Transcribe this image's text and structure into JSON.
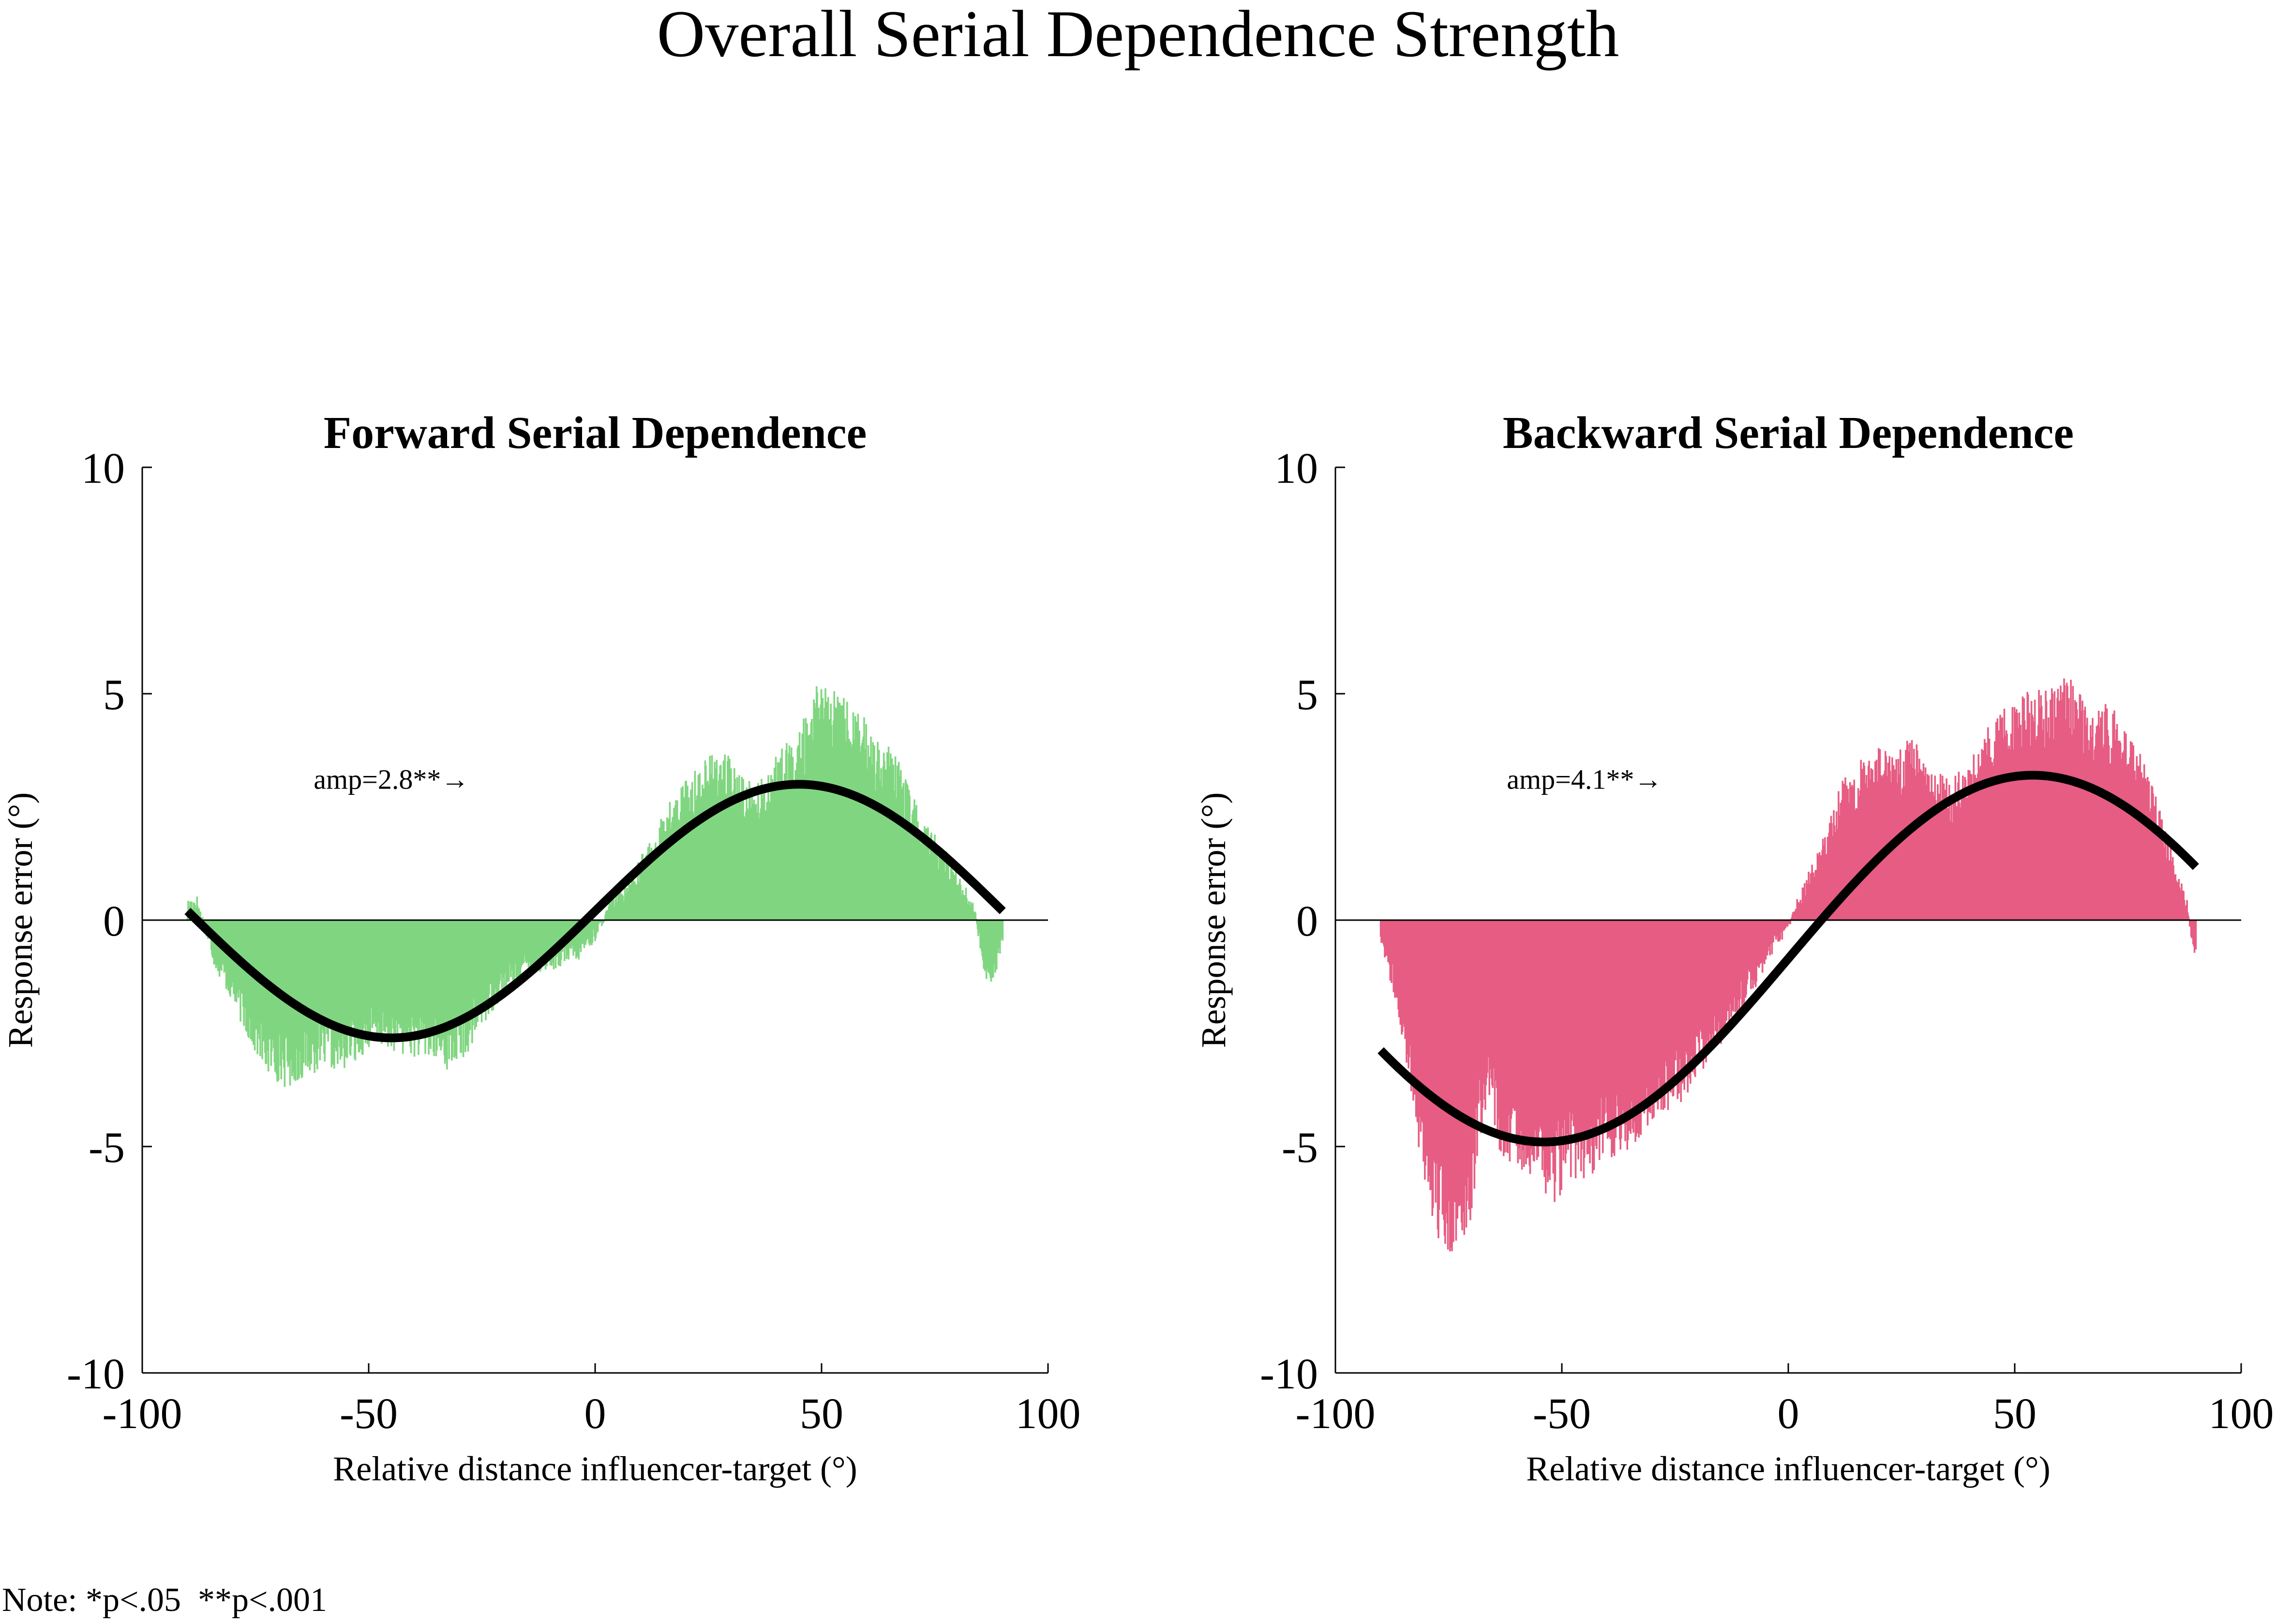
{
  "figure": {
    "title": "Overall Serial Dependence Strength",
    "note": "Note: *p<.05  **p<.001"
  },
  "chart_data": [
    {
      "type": "bar",
      "title": "Forward Serial Dependence",
      "xlabel": "Relative distance influencer-target (°)",
      "ylabel": "Response error (°)",
      "xlim": [
        -100,
        100
      ],
      "ylim": [
        -10,
        10
      ],
      "xticks": [
        "-100",
        "-50",
        "0",
        "50",
        "100"
      ],
      "yticks": [
        "-10",
        "-5",
        "0",
        "5",
        "10"
      ],
      "grid": false,
      "bar_color": "#80d680",
      "fit_color": "#000000",
      "annotation": "amp=2.8**→",
      "annotation_position_data": [
        -45,
        2.9
      ],
      "data_envelope": {
        "x": [
          -90,
          -88,
          -86,
          -84,
          -80,
          -76,
          -72,
          -68,
          -64,
          -60,
          -56,
          -52,
          -48,
          -44,
          -40,
          -36,
          -32,
          -28,
          -24,
          -20,
          -16,
          -12,
          -8,
          -4,
          0,
          4,
          8,
          12,
          16,
          20,
          24,
          28,
          32,
          36,
          40,
          44,
          48,
          50,
          52,
          56,
          60,
          64,
          68,
          72,
          76,
          80,
          84,
          86,
          88,
          90
        ],
        "y": [
          0.3,
          0.4,
          -0.2,
          -0.8,
          -1.5,
          -2.3,
          -2.9,
          -3.1,
          -2.9,
          -2.7,
          -2.8,
          -2.5,
          -2.3,
          -2.4,
          -2.5,
          -2.6,
          -2.8,
          -2.4,
          -1.8,
          -1.3,
          -1.0,
          -0.9,
          -0.8,
          -0.7,
          -0.3,
          0.4,
          0.8,
          1.4,
          2.1,
          2.6,
          3.0,
          3.2,
          2.7,
          2.5,
          3.1,
          3.4,
          4.2,
          4.7,
          4.3,
          4.1,
          3.7,
          3.3,
          2.8,
          1.9,
          1.4,
          0.9,
          0.1,
          -1.0,
          -1.1,
          -0.3
        ]
      },
      "fit": {
        "model": "sine",
        "peak_x": 45,
        "peak_y": 3.0,
        "trough_x": -45,
        "trough_y": -2.6,
        "x_range": [
          -90,
          90
        ]
      }
    },
    {
      "type": "bar",
      "title": "Backward Serial Dependence",
      "xlabel": "Relative distance influencer-target (°)",
      "ylabel": "Response error (°)",
      "xlim": [
        -100,
        100
      ],
      "ylim": [
        -10,
        10
      ],
      "xticks": [
        "-100",
        "-50",
        "0",
        "50",
        "100"
      ],
      "yticks": [
        "-10",
        "-5",
        "0",
        "5",
        "10"
      ],
      "grid": false,
      "bar_color": "#e65c82",
      "fit_color": "#000000",
      "annotation": "amp=4.1**→",
      "annotation_position_data": [
        -45,
        2.9
      ],
      "data_envelope": {
        "x": [
          -90,
          -88,
          -86,
          -84,
          -82,
          -80,
          -78,
          -76,
          -74,
          -72,
          -70,
          -68,
          -66,
          -64,
          -60,
          -56,
          -52,
          -48,
          -44,
          -40,
          -36,
          -32,
          -28,
          -24,
          -20,
          -16,
          -12,
          -8,
          -4,
          0,
          4,
          8,
          12,
          16,
          20,
          24,
          28,
          32,
          36,
          40,
          44,
          48,
          52,
          56,
          60,
          64,
          68,
          72,
          76,
          80,
          84,
          88,
          90
        ],
        "y": [
          -0.3,
          -1.0,
          -1.8,
          -2.8,
          -4.0,
          -5.2,
          -6.0,
          -6.4,
          -6.2,
          -6.0,
          -5.6,
          -4.0,
          -3.6,
          -4.3,
          -4.6,
          -4.8,
          -5.4,
          -4.9,
          -4.8,
          -4.6,
          -4.3,
          -4.0,
          -3.7,
          -3.4,
          -2.9,
          -2.4,
          -1.9,
          -1.3,
          -0.6,
          -0.1,
          0.7,
          1.6,
          2.6,
          3.0,
          3.2,
          3.3,
          3.4,
          2.8,
          2.6,
          2.9,
          3.6,
          4.0,
          4.2,
          4.4,
          4.6,
          4.5,
          4.2,
          3.9,
          3.4,
          2.6,
          1.4,
          0.3,
          -0.8
        ]
      },
      "fit": {
        "model": "sine",
        "peak_x": 54,
        "peak_y": 3.2,
        "trough_x": -54,
        "trough_y": -4.9,
        "x_range": [
          -90,
          90
        ]
      }
    }
  ]
}
